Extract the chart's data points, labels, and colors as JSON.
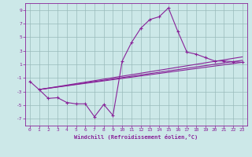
{
  "xlabel": "Windchill (Refroidissement éolien,°C)",
  "bg_color": "#cce8e8",
  "grid_color": "#99bbbb",
  "line_color": "#882299",
  "xlim": [
    -0.5,
    23.5
  ],
  "ylim": [
    -8.0,
    10.0
  ],
  "yticks": [
    -7,
    -5,
    -3,
    -1,
    1,
    3,
    5,
    7,
    9
  ],
  "xticks": [
    0,
    1,
    2,
    3,
    4,
    5,
    6,
    7,
    8,
    9,
    10,
    11,
    12,
    13,
    14,
    15,
    16,
    17,
    18,
    19,
    20,
    21,
    22,
    23
  ],
  "main_x": [
    0,
    1,
    2,
    3,
    4,
    5,
    6,
    7,
    8,
    9,
    10,
    11,
    12,
    13,
    14,
    15,
    16,
    17,
    18,
    19,
    20,
    21,
    22,
    23
  ],
  "main_y": [
    -1.5,
    -2.7,
    -4.0,
    -3.9,
    -4.6,
    -4.8,
    -4.8,
    -6.7,
    -4.9,
    -6.5,
    1.5,
    4.2,
    6.3,
    7.6,
    8.0,
    9.3,
    5.9,
    2.8,
    2.5,
    2.0,
    1.5,
    1.5,
    1.4,
    1.3
  ],
  "reg_lines": [
    {
      "x": [
        1,
        23
      ],
      "y": [
        -2.7,
        1.3
      ]
    },
    {
      "x": [
        1,
        23
      ],
      "y": [
        -2.7,
        1.6
      ]
    },
    {
      "x": [
        1,
        23
      ],
      "y": [
        -2.7,
        2.1
      ]
    }
  ]
}
